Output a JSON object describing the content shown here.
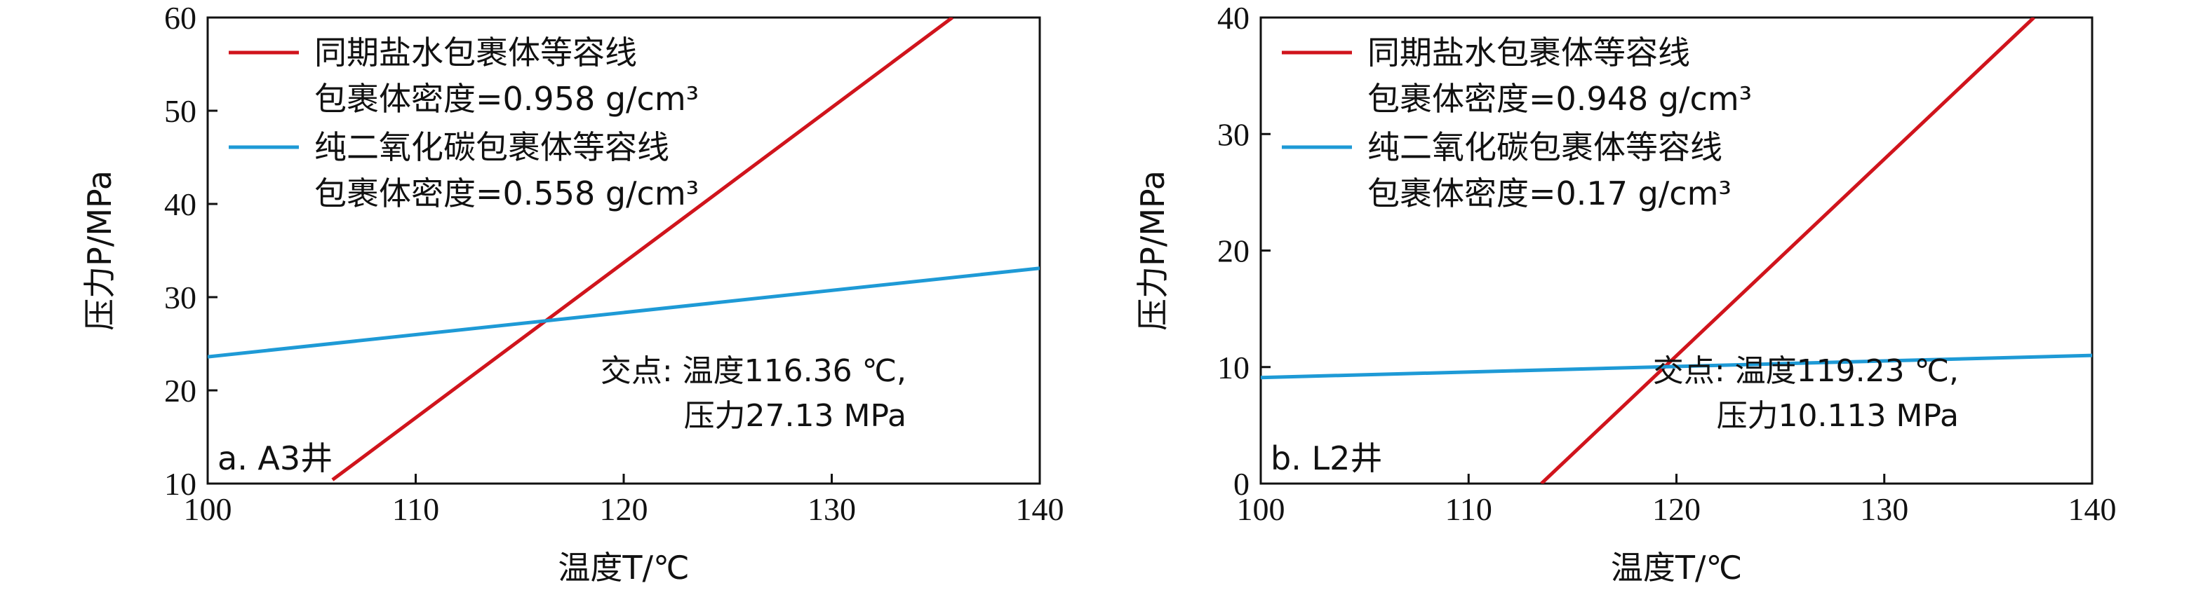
{
  "chart_data": [
    {
      "type": "line",
      "panel_label": "a. A3井",
      "xlabel": "温度T/℃",
      "ylabel": "压力P/MPa",
      "xlim": [
        100,
        140
      ],
      "ylim": [
        10,
        60
      ],
      "xticks": [
        100,
        110,
        120,
        130,
        140
      ],
      "yticks": [
        10,
        20,
        30,
        40,
        50,
        60
      ],
      "grid": false,
      "legend_position": "top-left",
      "series": [
        {
          "name": "同期盐水包裹体等容线",
          "note": "包裹体密度=0.958 g/cm³",
          "color": "#d0141c",
          "x": [
            106,
            135.8
          ],
          "y": [
            10.4,
            60
          ]
        },
        {
          "name": "纯二氧化碳包裹体等容线",
          "note": "包裹体密度=0.558 g/cm³",
          "color": "#1e9ad6",
          "x": [
            100,
            140
          ],
          "y": [
            23.6,
            33.1
          ]
        }
      ],
      "annotation": {
        "line1": "交点: 温度116.36 ℃,",
        "line2": "压力27.13 MPa",
        "x": 116.36,
        "y": 27.13
      }
    },
    {
      "type": "line",
      "panel_label": "b. L2井",
      "xlabel": "温度T/℃",
      "ylabel": "压力P/MPa",
      "xlim": [
        100,
        140
      ],
      "ylim": [
        0,
        40
      ],
      "xticks": [
        100,
        110,
        120,
        130,
        140
      ],
      "yticks": [
        0,
        10,
        20,
        30,
        40
      ],
      "grid": false,
      "legend_position": "top-left",
      "series": [
        {
          "name": "同期盐水包裹体等容线",
          "note": "包裹体密度=0.948 g/cm³",
          "color": "#d0141c",
          "x": [
            113.5,
            137.2
          ],
          "y": [
            0,
            40
          ]
        },
        {
          "name": "纯二氧化碳包裹体等容线",
          "note": "包裹体密度=0.17 g/cm³",
          "color": "#1e9ad6",
          "x": [
            100,
            140
          ],
          "y": [
            9.1,
            11.0
          ]
        }
      ],
      "annotation": {
        "line1": "交点: 温度119.23 ℃,",
        "line2": "压力10.113 MPa",
        "x": 119.23,
        "y": 10.113
      }
    }
  ]
}
